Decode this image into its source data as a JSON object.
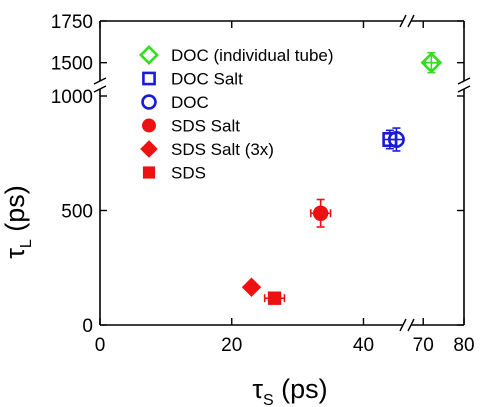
{
  "chart_data": {
    "type": "scatter",
    "title": "",
    "xlabel": {
      "main": "τ",
      "sub": "S",
      "unit": " (ps)"
    },
    "ylabel": {
      "main": "τ",
      "sub": "L",
      "unit": " (ps)"
    },
    "x_axis": {
      "broken": true,
      "segments": [
        {
          "range": [
            0,
            46
          ],
          "ticks": [
            0,
            20,
            40
          ]
        },
        {
          "range": [
            67,
            80
          ],
          "ticks": [
            70,
            80
          ]
        }
      ]
    },
    "y_axis": {
      "broken": true,
      "segments": [
        {
          "range": [
            0,
            1000
          ],
          "ticks": [
            0,
            500,
            1000
          ]
        },
        {
          "range": [
            1390,
            1750
          ],
          "ticks": [
            1500,
            1750
          ]
        }
      ]
    },
    "grid": false,
    "legend_position": "top-left",
    "series": [
      {
        "name": "DOC (individual tube)",
        "marker": "diamond-open",
        "color": "#33dd1f",
        "points": [
          {
            "x": 72,
            "y": 1500,
            "xerr": 1.5,
            "yerr": 60
          }
        ]
      },
      {
        "name": "DOC Salt",
        "marker": "square-open",
        "color": "#1a1adc",
        "points": [
          {
            "x": 44,
            "y": 810,
            "xerr": 1,
            "yerr": 40
          }
        ]
      },
      {
        "name": "DOC",
        "marker": "circle-open",
        "color": "#1a1adc",
        "points": [
          {
            "x": 45,
            "y": 810,
            "xerr": 1,
            "yerr": 50
          }
        ]
      },
      {
        "name": "SDS Salt",
        "marker": "circle",
        "color": "#ee1111",
        "points": [
          {
            "x": 33.5,
            "y": 488,
            "xerr": 1.5,
            "yerr": 60
          }
        ]
      },
      {
        "name": "SDS Salt (3x)",
        "marker": "diamond",
        "color": "#ee1111",
        "points": [
          {
            "x": 23,
            "y": 165,
            "xerr": 0,
            "yerr": 0
          }
        ]
      },
      {
        "name": "SDS",
        "marker": "square",
        "color": "#ee1111",
        "points": [
          {
            "x": 26.5,
            "y": 117,
            "xerr": 1.5,
            "yerr": 0
          }
        ]
      }
    ]
  }
}
